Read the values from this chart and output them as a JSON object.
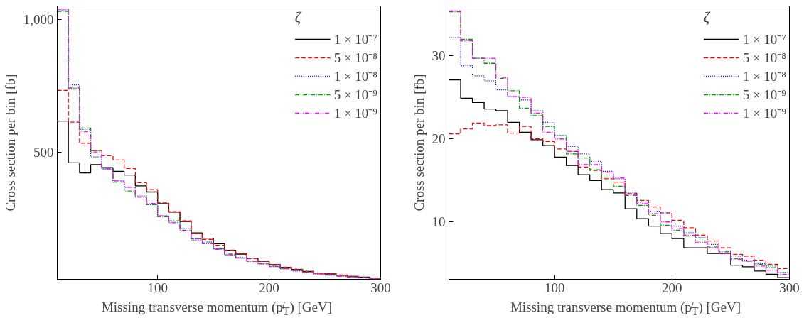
{
  "chart_data": [
    {
      "type": "histogram",
      "xlabel": "Missing transverse momentum (p̸$_{T}$) [GeV]",
      "ylabel": "Cross section per bin [fb]",
      "legend_title": "ζ",
      "legend": "top right",
      "grid": false,
      "bins": [
        10,
        20,
        30,
        40,
        50,
        60,
        70,
        80,
        90,
        100,
        110,
        120,
        130,
        140,
        150,
        160,
        170,
        180,
        190,
        200,
        210,
        220,
        230,
        240,
        250,
        260,
        270,
        280,
        290,
        300
      ],
      "xlim": [
        10,
        300
      ],
      "xticks": [
        100,
        200,
        300
      ],
      "ylim": [
        20,
        1050
      ],
      "yticks": [
        500,
        {
          "value": 1000,
          "label": "1,000"
        }
      ],
      "series": [
        {
          "name": "1 × 10⁻⁷",
          "color": "#000000",
          "line_style": "solid",
          "values": [
            616,
            459,
            421,
            452,
            441,
            427,
            413,
            372,
            349,
            305,
            273,
            238,
            195,
            175,
            154,
            129,
            115,
            100,
            88,
            75,
            65,
            57,
            50,
            44,
            40,
            35,
            31,
            28,
            25
          ]
        },
        {
          "name": "5 × 10⁻⁸",
          "color": "#ff0000",
          "line_style": "dashed",
          "values": [
            732,
            612,
            533,
            505,
            486,
            470,
            438,
            384,
            358,
            310,
            275,
            240,
            192,
            170,
            148,
            130,
            118,
            98,
            88,
            73,
            66,
            58,
            50,
            44,
            41,
            36,
            31,
            27,
            24
          ]
        },
        {
          "name": "1 × 10⁻⁸",
          "color": "#0000ff",
          "line_style": "dotted",
          "values": [
            1035,
            753,
            585,
            481,
            438,
            391,
            367,
            334,
            301,
            259,
            235,
            211,
            168,
            161,
            135,
            112,
            102,
            90,
            78,
            68,
            60,
            52,
            46,
            40,
            36,
            32,
            29,
            26,
            23
          ]
        },
        {
          "name": "5 × 10⁻⁹",
          "color": "#00a000",
          "line_style": "dashdot",
          "values": [
            1030,
            737,
            590,
            505,
            433,
            386,
            353,
            330,
            301,
            256,
            240,
            205,
            173,
            157,
            135,
            115,
            100,
            88,
            80,
            70,
            61,
            54,
            47,
            41,
            37,
            33,
            29,
            26,
            23
          ]
        },
        {
          "name": "1 × 10⁻⁹",
          "color": "#ff00ff",
          "line_style": "dashdotdot",
          "values": [
            1038,
            741,
            576,
            500,
            436,
            391,
            367,
            330,
            306,
            259,
            233,
            202,
            173,
            154,
            133,
            112,
            100,
            88,
            78,
            68,
            60,
            52,
            46,
            40,
            36,
            32,
            28,
            25,
            22
          ]
        }
      ]
    },
    {
      "type": "histogram",
      "xlabel": "Missing transverse momentum (p̸$_{T}$) [GeV]",
      "ylabel": "Cross section per bin [fb]",
      "legend_title": "ζ",
      "legend": "top right",
      "grid": false,
      "bins": [
        10,
        20,
        30,
        40,
        50,
        60,
        70,
        80,
        90,
        100,
        110,
        120,
        130,
        140,
        150,
        160,
        170,
        180,
        190,
        200,
        210,
        220,
        230,
        240,
        250,
        260,
        270,
        280,
        290,
        300
      ],
      "xlim": [
        10,
        300
      ],
      "xticks": [
        100,
        200,
        300
      ],
      "ylim": [
        3.1,
        36
      ],
      "yticks": [
        10,
        20,
        30
      ],
      "series": [
        {
          "name": "1 × 10⁻⁷",
          "color": "#000000",
          "line_style": "solid",
          "values": [
            27.1,
            24.9,
            24.4,
            23.6,
            23.4,
            22.0,
            20.8,
            19.9,
            19.2,
            17.8,
            16.8,
            15.7,
            15.0,
            13.9,
            13.5,
            11.6,
            10.4,
            9.5,
            8.6,
            8.0,
            6.9,
            6.9,
            6.2,
            6.2,
            4.8,
            4.6,
            4.1,
            3.7,
            3.3
          ]
        },
        {
          "name": "5 × 10⁻⁸",
          "color": "#ff0000",
          "line_style": "dashed",
          "values": [
            20.6,
            21.2,
            21.9,
            21.6,
            21.7,
            20.7,
            21.5,
            20.0,
            19.7,
            18.8,
            18.5,
            16.6,
            16.2,
            15.2,
            14.8,
            13.4,
            12.6,
            11.8,
            11.1,
            10.2,
            9.3,
            8.4,
            7.7,
            6.9,
            6.1,
            5.9,
            5.4,
            4.9,
            4.4
          ]
        },
        {
          "name": "1 × 10⁻⁸",
          "color": "#0000ff",
          "line_style": "dotted",
          "values": [
            32.2,
            28.8,
            27.6,
            27.0,
            25.9,
            25.1,
            24.7,
            23.4,
            22.0,
            20.4,
            19.1,
            18.2,
            17.3,
            16.1,
            15.2,
            13.5,
            12.4,
            11.3,
            11.0,
            9.5,
            8.7,
            8.1,
            7.3,
            6.5,
            5.9,
            5.4,
            5.0,
            4.7,
            3.9
          ]
        },
        {
          "name": "5 × 10⁻⁹",
          "color": "#00a000",
          "line_style": "dashdot",
          "values": [
            35.3,
            32.0,
            29.7,
            29.1,
            27.3,
            25.8,
            23.7,
            22.8,
            21.5,
            20.4,
            18.2,
            17.7,
            16.3,
            15.4,
            14.3,
            13.2,
            12.0,
            10.8,
            9.6,
            9.0,
            8.3,
            7.7,
            7.0,
            6.4,
            5.6,
            5.3,
            4.9,
            4.5,
            3.9
          ]
        },
        {
          "name": "1 × 10⁻⁹",
          "color": "#ff00ff",
          "line_style": "dashdotdot",
          "values": [
            35.4,
            31.8,
            29.7,
            29.7,
            27.4,
            25.1,
            25.0,
            23.1,
            20.8,
            20.0,
            18.5,
            16.9,
            16.9,
            16.0,
            15.3,
            13.3,
            12.2,
            11.0,
            10.0,
            9.2,
            8.4,
            7.5,
            6.9,
            6.2,
            5.5,
            5.3,
            4.7,
            4.2,
            3.7
          ]
        }
      ]
    }
  ]
}
